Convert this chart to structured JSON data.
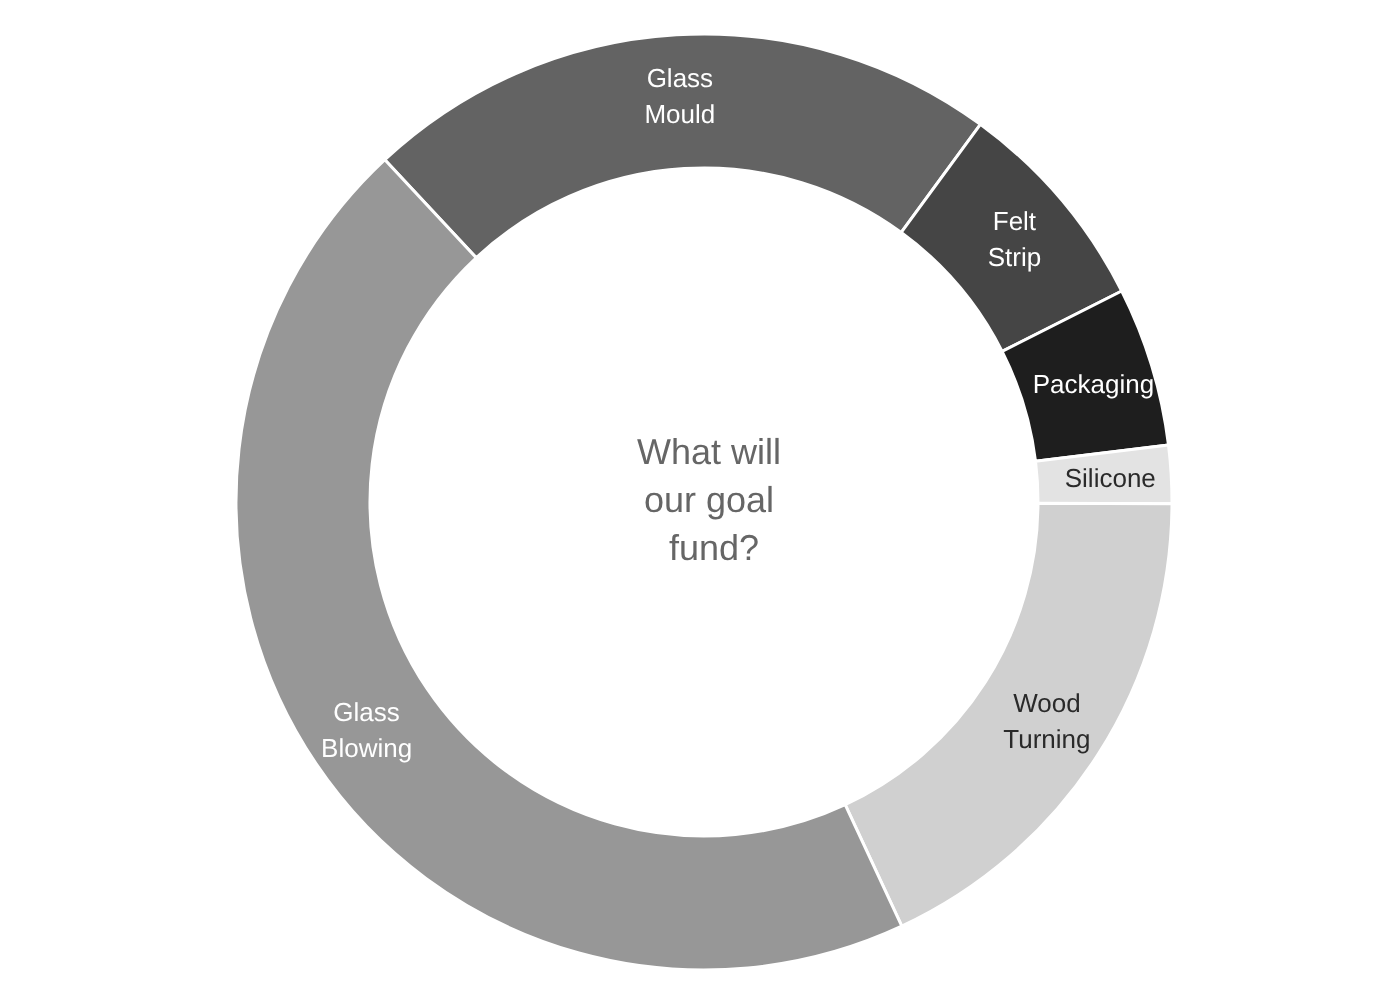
{
  "chart_data": {
    "type": "donut",
    "title": "What will our goal fund?",
    "categories": [
      "Glass Mould",
      "Felt Strip",
      "Packaging",
      "Silicone",
      "Wood Turning",
      "Glass Blowing"
    ],
    "values": [
      22,
      7.5,
      5.5,
      2,
      18,
      45
    ],
    "colors": [
      "#636363",
      "#454545",
      "#1e1e1e",
      "#e3e3e3",
      "#d0d0d0",
      "#979797"
    ]
  }
}
